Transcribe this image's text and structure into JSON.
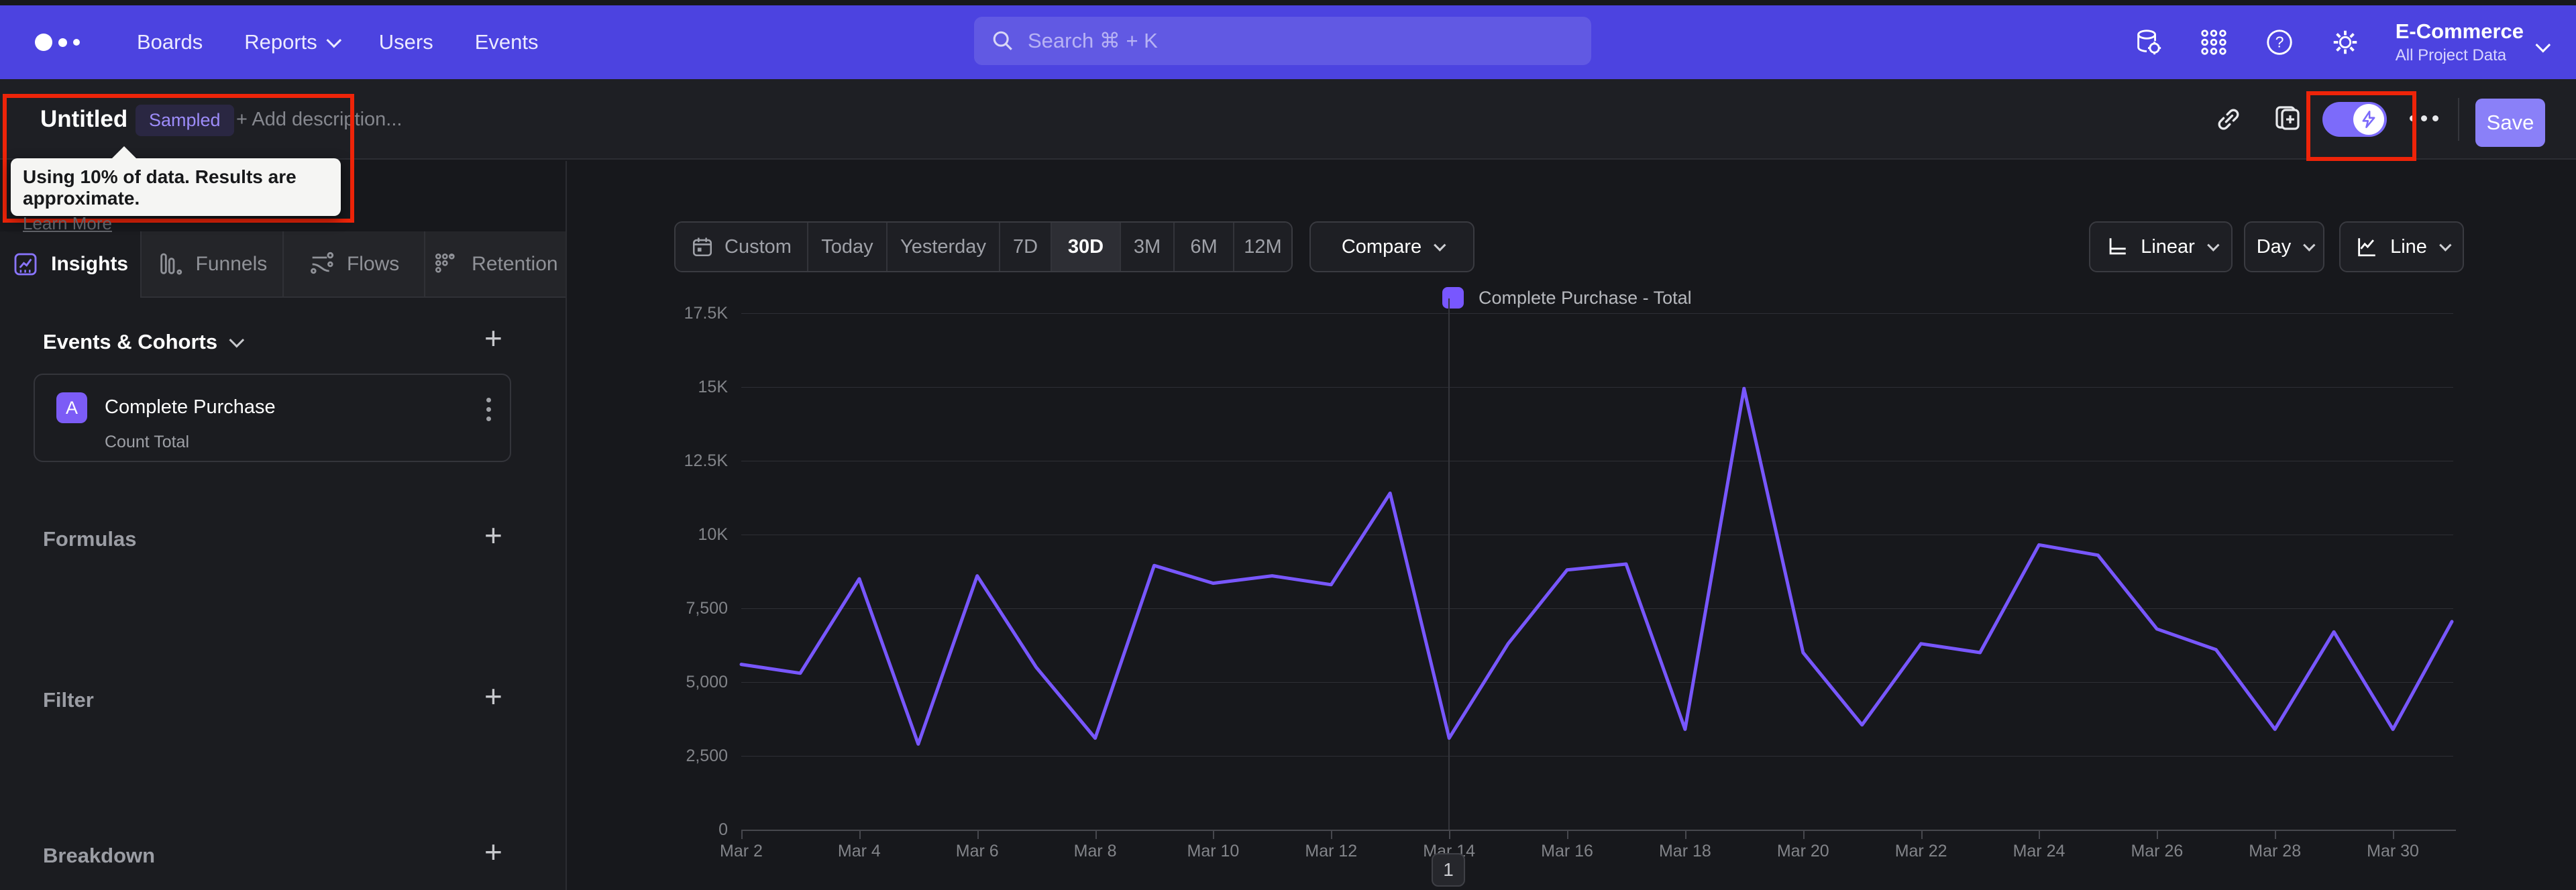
{
  "nav": {
    "items": [
      {
        "label": "Boards",
        "chevron": false
      },
      {
        "label": "Reports",
        "chevron": true
      },
      {
        "label": "Users",
        "chevron": false
      },
      {
        "label": "Events",
        "chevron": false
      }
    ],
    "search_placeholder": "Search  ⌘ + K",
    "project": {
      "name": "E-Commerce",
      "scope": "All Project Data"
    }
  },
  "header": {
    "title": "Untitled",
    "badge": "Sampled",
    "description_placeholder": "+ Add description...",
    "save_label": "Save",
    "tooltip": {
      "text": "Using 10% of data. Results are approximate.",
      "link": "Learn More"
    }
  },
  "sidebar": {
    "tabs": [
      {
        "label": "Insights",
        "active": true
      },
      {
        "label": "Funnels",
        "active": false
      },
      {
        "label": "Flows",
        "active": false
      },
      {
        "label": "Retention",
        "active": false
      }
    ],
    "events_section": {
      "title": "Events & Cohorts",
      "event": {
        "letter": "A",
        "name": "Complete Purchase",
        "metric": "Count Total"
      }
    },
    "sections": [
      "Formulas",
      "Filter",
      "Breakdown"
    ]
  },
  "controls": {
    "ranges": [
      "Custom",
      "Today",
      "Yesterday",
      "7D",
      "30D",
      "3M",
      "6M",
      "12M"
    ],
    "active_range": "30D",
    "range_widths": [
      196,
      118,
      168,
      77,
      103,
      80,
      89,
      87
    ],
    "compare_label": "Compare",
    "scale_label": "Linear",
    "interval_label": "Day",
    "chart_type_label": "Line"
  },
  "chart_data": {
    "type": "line",
    "legend": "Complete Purchase - Total",
    "series_color": "#7857ff",
    "x": [
      "Mar 2",
      "Mar 3",
      "Mar 4",
      "Mar 5",
      "Mar 6",
      "Mar 7",
      "Mar 8",
      "Mar 9",
      "Mar 10",
      "Mar 11",
      "Mar 12",
      "Mar 13",
      "Mar 14",
      "Mar 15",
      "Mar 16",
      "Mar 17",
      "Mar 18",
      "Mar 19",
      "Mar 20",
      "Mar 21",
      "Mar 22",
      "Mar 23",
      "Mar 24",
      "Mar 25",
      "Mar 26",
      "Mar 27",
      "Mar 28",
      "Mar 29",
      "Mar 30",
      "Mar 31"
    ],
    "values": [
      5600,
      5300,
      8500,
      2900,
      8600,
      5500,
      3100,
      8950,
      8350,
      8600,
      8300,
      11400,
      3100,
      6300,
      8800,
      9000,
      3400,
      14950,
      6000,
      3550,
      6300,
      6000,
      9650,
      9300,
      6800,
      6100,
      3400,
      6700,
      3400,
      7050
    ],
    "ylim": [
      0,
      17500
    ],
    "ytick_values": [
      0,
      2500,
      5000,
      7500,
      10000,
      12500,
      15000,
      17500
    ],
    "ytick_labels": [
      "0",
      "2,500",
      "5,000",
      "7,500",
      "10K",
      "12.5K",
      "15K",
      "17.5K"
    ],
    "xtick_labels": [
      "Mar 2",
      "Mar 4",
      "Mar 6",
      "Mar 8",
      "Mar 10",
      "Mar 12",
      "Mar 14",
      "Mar 16",
      "Mar 18",
      "Mar 20",
      "Mar 22",
      "Mar 24",
      "Mar 26",
      "Mar 28",
      "Mar 30"
    ],
    "grid": true,
    "legend_position": "top-center",
    "reference_line_x": "Mar 14"
  },
  "pagination": "1",
  "colors": {
    "nav": "#4c43e0",
    "accent": "#7857ff",
    "save": "#8a80f8",
    "annotation": "#ee2409",
    "panel": "#1e1f24",
    "background": "#17181c"
  }
}
